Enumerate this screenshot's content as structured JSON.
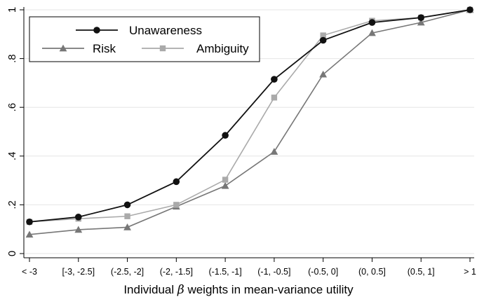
{
  "chart_data": {
    "type": "line",
    "xlabel_pre": "Individual ",
    "xlabel_symbol": "β",
    "xlabel_post": " weights in mean-variance utility",
    "ylabel": "",
    "categories": [
      "< -3",
      "[-3, -2.5]",
      "(-2.5, -2]",
      "(-2, -1.5]",
      "(-1.5, -1]",
      "(-1, -0.5]",
      "(-0.5, 0]",
      "(0, 0.5]",
      "(0.5, 1]",
      "> 1"
    ],
    "ylim": [
      0,
      1
    ],
    "yticks": [
      0,
      0.2,
      0.4,
      0.6,
      0.8,
      1
    ],
    "ytick_labels": [
      "0",
      ".2",
      ".4",
      ".6",
      ".8",
      "1"
    ],
    "grid": "horizontal",
    "legend_position": "top-left",
    "series": [
      {
        "name": "Unawareness",
        "color": "#111111",
        "marker": "circle",
        "values": [
          0.13,
          0.15,
          0.2,
          0.295,
          0.485,
          0.715,
          0.875,
          0.948,
          0.968,
          1.0
        ]
      },
      {
        "name": "Risk",
        "color": "#777777",
        "marker": "triangle",
        "values": [
          0.078,
          0.098,
          0.108,
          0.193,
          0.278,
          0.418,
          0.735,
          0.905,
          0.948,
          1.0
        ]
      },
      {
        "name": "Ambiguity",
        "color": "#aaaaaa",
        "marker": "square",
        "values": [
          0.13,
          0.143,
          0.153,
          0.2,
          0.303,
          0.64,
          0.895,
          0.955,
          0.968,
          1.0
        ]
      }
    ]
  }
}
